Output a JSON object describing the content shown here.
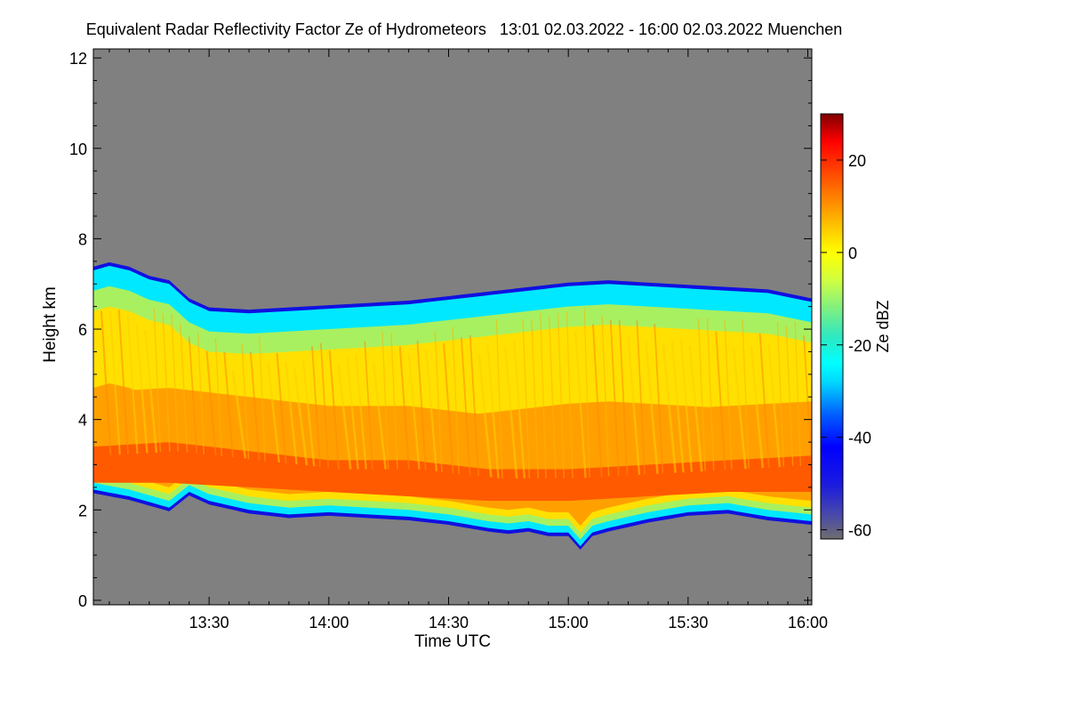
{
  "chart_data": {
    "type": "heatmap",
    "title": "Equivalent Radar Reflectivity Factor Ze of Hydrometeors   13:01 02.03.2022 - 16:00 02.03.2022 Muenchen",
    "xlabel": "Time UTC",
    "ylabel": "Height km",
    "x_ticks": [
      "13:30",
      "14:00",
      "14:30",
      "15:00",
      "15:30",
      "16:00"
    ],
    "x_tick_minutes": [
      30,
      60,
      90,
      120,
      150,
      180
    ],
    "x_range_minutes": [
      1,
      181
    ],
    "y_ticks": [
      0,
      2,
      4,
      6,
      8,
      10,
      12
    ],
    "ylim": [
      -0.1,
      12.2
    ],
    "background_color": "#808080",
    "colorbar": {
      "label": "Ze dBZ",
      "ticks": [
        20,
        0,
        -20,
        -40,
        -60
      ],
      "range": [
        -62,
        30
      ],
      "stops": [
        {
          "value": -62,
          "color": "#6e6e6e"
        },
        {
          "value": -57,
          "color": "#4a4aa8"
        },
        {
          "value": -50,
          "color": "#1a1ae0"
        },
        {
          "value": -42,
          "color": "#0000ff"
        },
        {
          "value": -35,
          "color": "#0060ff"
        },
        {
          "value": -28,
          "color": "#00d8ff"
        },
        {
          "value": -24,
          "color": "#00ffff"
        },
        {
          "value": -18,
          "color": "#30e8c0"
        },
        {
          "value": -12,
          "color": "#80f080"
        },
        {
          "value": -6,
          "color": "#d0ff40"
        },
        {
          "value": 0,
          "color": "#ffff00"
        },
        {
          "value": 6,
          "color": "#ffc000"
        },
        {
          "value": 12,
          "color": "#ff8000"
        },
        {
          "value": 18,
          "color": "#ff4000"
        },
        {
          "value": 24,
          "color": "#ff0000"
        },
        {
          "value": 30,
          "color": "#800000"
        }
      ]
    },
    "cloud_top_km": [
      [
        1,
        7.3
      ],
      [
        5,
        7.4
      ],
      [
        10,
        7.3
      ],
      [
        15,
        7.1
      ],
      [
        20,
        7.0
      ],
      [
        25,
        6.6
      ],
      [
        30,
        6.4
      ],
      [
        40,
        6.35
      ],
      [
        50,
        6.4
      ],
      [
        60,
        6.45
      ],
      [
        70,
        6.5
      ],
      [
        80,
        6.55
      ],
      [
        90,
        6.65
      ],
      [
        100,
        6.75
      ],
      [
        110,
        6.85
      ],
      [
        120,
        6.95
      ],
      [
        130,
        7.0
      ],
      [
        140,
        6.95
      ],
      [
        150,
        6.9
      ],
      [
        160,
        6.85
      ],
      [
        170,
        6.8
      ],
      [
        181,
        6.6
      ]
    ],
    "cloud_base_km": [
      [
        1,
        2.45
      ],
      [
        10,
        2.3
      ],
      [
        20,
        2.05
      ],
      [
        25,
        2.4
      ],
      [
        30,
        2.2
      ],
      [
        40,
        2.0
      ],
      [
        50,
        1.9
      ],
      [
        60,
        1.95
      ],
      [
        70,
        1.9
      ],
      [
        80,
        1.85
      ],
      [
        90,
        1.75
      ],
      [
        100,
        1.6
      ],
      [
        105,
        1.55
      ],
      [
        110,
        1.6
      ],
      [
        115,
        1.5
      ],
      [
        120,
        1.5
      ],
      [
        123,
        1.2
      ],
      [
        126,
        1.5
      ],
      [
        130,
        1.6
      ],
      [
        140,
        1.8
      ],
      [
        150,
        1.95
      ],
      [
        160,
        2.0
      ],
      [
        170,
        1.85
      ],
      [
        181,
        1.75
      ]
    ],
    "core_band_km": [
      [
        1,
        2.6,
        3.4
      ],
      [
        20,
        2.6,
        3.5
      ],
      [
        40,
        2.5,
        3.3
      ],
      [
        60,
        2.4,
        3.1
      ],
      [
        80,
        2.3,
        3.1
      ],
      [
        100,
        2.2,
        2.9
      ],
      [
        120,
        2.2,
        2.9
      ],
      [
        140,
        2.3,
        3.0
      ],
      [
        160,
        2.4,
        3.1
      ],
      [
        181,
        2.4,
        3.2
      ]
    ]
  }
}
